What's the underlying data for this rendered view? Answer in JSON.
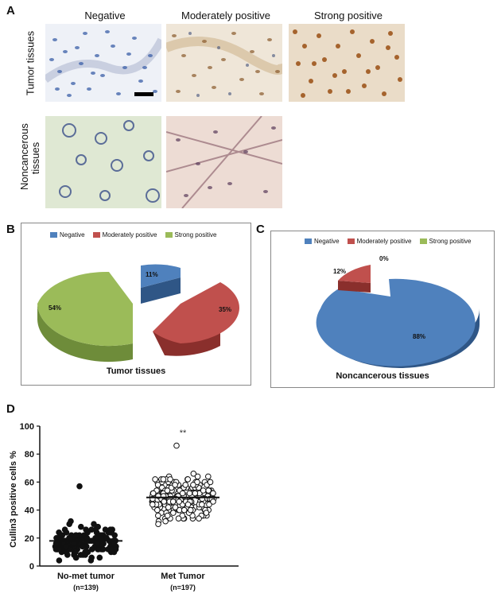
{
  "figure": {
    "panel_a": {
      "letter": "A",
      "columns": [
        "Negative",
        "Moderately positive",
        "Strong positive"
      ],
      "rows": [
        "Tumor tissues",
        "Noncancerous tissues"
      ]
    },
    "panel_b": {
      "letter": "B",
      "caption": "Tumor tissues",
      "legend": [
        "Negative",
        "Moderately positive",
        "Strong positive"
      ],
      "labels": [
        "11%",
        "35%",
        "54%"
      ]
    },
    "panel_c": {
      "letter": "C",
      "caption": "Noncancerous tissues",
      "legend": [
        "Negative",
        "Moderately positive",
        "Strong positive"
      ],
      "labels": [
        "88%",
        "12%",
        "0%"
      ]
    },
    "panel_d": {
      "letter": "D",
      "ylabel": "Cullin3 positive cells %",
      "yticks": [
        "0",
        "20",
        "40",
        "60",
        "80",
        "100"
      ],
      "significance": "**",
      "groups": [
        {
          "name": "No-met tumor",
          "n": "(n=139)"
        },
        {
          "name": "Met Tumor",
          "n": "(n=197)"
        }
      ]
    }
  },
  "colors": {
    "negative": "#4f81bd",
    "moderate": "#c0504d",
    "strong": "#9bbb59"
  },
  "chart_data": [
    {
      "type": "pie",
      "title": "Tumor tissues",
      "categories": [
        "Negative",
        "Moderately positive",
        "Strong positive"
      ],
      "values": [
        11,
        35,
        54
      ]
    },
    {
      "type": "pie",
      "title": "Noncancerous tissues",
      "categories": [
        "Negative",
        "Moderately positive",
        "Strong positive"
      ],
      "values": [
        88,
        12,
        0
      ]
    },
    {
      "type": "scatter",
      "title": "",
      "xlabel": "",
      "ylabel": "Cullin3 positive cells %",
      "ylim": [
        0,
        100
      ],
      "categories": [
        "No-met tumor (n=139)",
        "Met Tumor (n=197)"
      ],
      "series": [
        {
          "name": "No-met tumor",
          "n": 139,
          "mean": 18,
          "min": 2,
          "max": 57,
          "marker": "filled"
        },
        {
          "name": "Met Tumor",
          "n": 197,
          "mean": 49,
          "min": 5,
          "max": 86,
          "marker": "open"
        }
      ]
    }
  ]
}
